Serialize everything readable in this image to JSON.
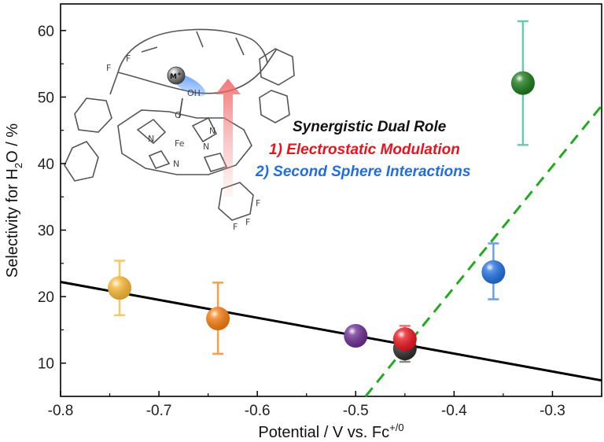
{
  "chart_data": {
    "type": "scatter",
    "xlabel": "Potential / V vs. Fc",
    "xlabel_sup": "+/0",
    "ylabel_pre": "Selectivity for H",
    "ylabel_sub": "2",
    "ylabel_post": "O / %",
    "xlim": [
      -0.8,
      -0.25
    ],
    "ylim": [
      5,
      64
    ],
    "xticks": [
      -0.8,
      -0.7,
      -0.6,
      -0.5,
      -0.4,
      -0.3
    ],
    "xtick_labels": [
      "-0.8",
      "-0.7",
      "-0.6",
      "-0.5",
      "-0.4",
      "-0.3"
    ],
    "yticks": [
      10,
      20,
      30,
      40,
      50,
      60
    ],
    "ytick_labels": [
      "10",
      "20",
      "30",
      "40",
      "50",
      "60"
    ],
    "points": [
      {
        "x": -0.74,
        "y": 21.3,
        "err_low": 17.2,
        "err_high": 25.4,
        "color": "#f7b733",
        "err_color": "#f7c766"
      },
      {
        "x": -0.64,
        "y": 16.7,
        "err_low": 11.4,
        "err_high": 22.1,
        "color": "#f57c0e",
        "err_color": "#f5a04a"
      },
      {
        "x": -0.5,
        "y": 14.1,
        "color": "#6a2c91"
      },
      {
        "x": -0.45,
        "y": 12.2,
        "err_low": 10.2,
        "err_high": 14.3,
        "color": "#2d2d2d",
        "err_color": "#888888"
      },
      {
        "x": -0.45,
        "y": 13.6,
        "err_low": 11.6,
        "err_high": 15.6,
        "color": "#e8141d",
        "err_color": "#f07070"
      },
      {
        "x": -0.36,
        "y": 23.7,
        "err_low": 19.6,
        "err_high": 28.0,
        "color": "#1f6fe0",
        "err_color": "#6a9fe8"
      },
      {
        "x": -0.33,
        "y": 52.1,
        "err_low": 42.8,
        "err_high": 61.4,
        "color": "#1a7a1a",
        "err_color": "#66ccaa"
      }
    ],
    "fit_lines": [
      {
        "style": "solid",
        "color": "#000000",
        "x": [
          -0.8,
          -0.25
        ],
        "y": [
          22.2,
          7.4
        ]
      },
      {
        "style": "dashed",
        "color": "#22aa22",
        "x": [
          -0.49,
          -0.25
        ],
        "y": [
          5,
          48.7
        ]
      }
    ]
  },
  "annotation": {
    "title": "Synergistic Dual Role",
    "line1": "1) Electrostatic Modulation",
    "line2": "2) Second Sphere Interactions",
    "title_color": "#111111",
    "line1_color": "#e8141d",
    "line2_color": "#1f6fe0"
  },
  "molecule": {
    "metal_label": "M",
    "metal_sup": "+",
    "oh_label": "OH",
    "o_label": "O",
    "fe_label": "Fe",
    "n_label": "N",
    "f_label": "F"
  }
}
